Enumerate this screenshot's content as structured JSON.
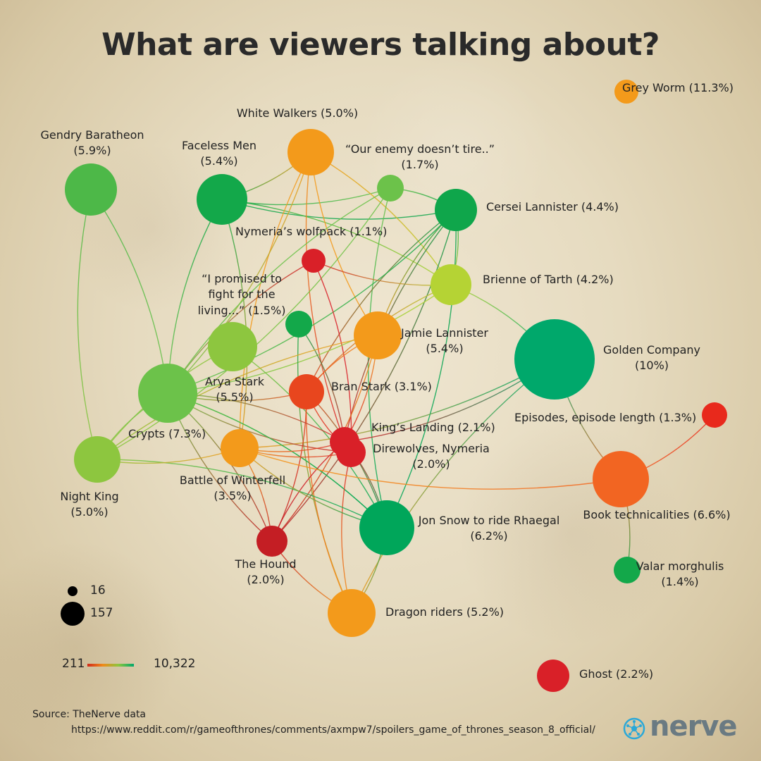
{
  "title": "What are viewers talking about?",
  "nodes": [
    {
      "id": "grey_worm",
      "label": "Grey Worm",
      "pct": "(11.3%)",
      "color": "#f39a1b"
    },
    {
      "id": "white_walkers",
      "label": "White Walkers",
      "pct": "(5.0%)",
      "color": "#f39a1b"
    },
    {
      "id": "gendry",
      "label": "Gendry Baratheon",
      "pct": "(5.9%)",
      "color": "#4db848"
    },
    {
      "id": "faceless",
      "label": "Faceless Men",
      "pct": "(5.4%)",
      "color": "#13a84a"
    },
    {
      "id": "enemy",
      "label": "“Our enemy doesn’t tire..”",
      "pct": "(1.7%)",
      "color": "#6cc24a"
    },
    {
      "id": "cersei",
      "label": "Cersei Lannister",
      "pct": "(4.4%)",
      "color": "#0fa64b"
    },
    {
      "id": "nymeria_pack",
      "label": "Nymeria’s wolfpack",
      "pct": "(1.1%)",
      "color": "#d92028"
    },
    {
      "id": "promised",
      "label": "“I promised to fight for the living...”",
      "pct": "(1.5%)",
      "color": "#8dc63f"
    },
    {
      "id": "brienne",
      "label": "Brienne of Tarth",
      "pct": "(4.2%)",
      "color": "#b5d334"
    },
    {
      "id": "small_green",
      "label": "",
      "pct": "",
      "color": "#13a84a"
    },
    {
      "id": "jamie",
      "label": "Jamie Lannister",
      "pct": "(5.4%)",
      "color": "#f39a1b"
    },
    {
      "id": "golden",
      "label": "Golden Company",
      "pct": "(10%)",
      "color": "#00a86b"
    },
    {
      "id": "arya",
      "label": "Arya Stark",
      "pct": "(5.5%)",
      "color": "#6cc24a"
    },
    {
      "id": "crypts",
      "label": "Crypts",
      "pct": "(7.3%)",
      "color": "#6cc24a"
    },
    {
      "id": "bran",
      "label": "Bran Stark",
      "pct": "(3.1%)",
      "color": "#e8461e"
    },
    {
      "id": "episodes",
      "label": "Episodes, episode length",
      "pct": "(1.3%)",
      "color": "#e8291c"
    },
    {
      "id": "kings",
      "label": "King’s Landing",
      "pct": "(2.1%)",
      "color": "#d92028"
    },
    {
      "id": "direwolves",
      "label": "Direwolves, Nymeria",
      "pct": "(2.0%)",
      "color": "#d92028"
    },
    {
      "id": "night_king",
      "label": "Night King",
      "pct": "(5.0%)",
      "color": "#8dc63f"
    },
    {
      "id": "battle",
      "label": "Battle of Winterfell",
      "pct": "(3.5%)",
      "color": "#f39a1b"
    },
    {
      "id": "book",
      "label": "Book technicalities",
      "pct": "(6.6%)",
      "color": "#f26522"
    },
    {
      "id": "jon",
      "label": "Jon Snow to ride Rhaegal",
      "pct": "(6.2%)",
      "color": "#00a65a"
    },
    {
      "id": "hound",
      "label": "The Hound",
      "pct": "(2.0%)",
      "color": "#c41e24"
    },
    {
      "id": "valar",
      "label": "Valar morghulis",
      "pct": "(1.4%)",
      "color": "#13a84a"
    },
    {
      "id": "dragon",
      "label": "Dragon riders",
      "pct": "(5.2%)",
      "color": "#f39a1b"
    },
    {
      "id": "ghost",
      "label": "Ghost",
      "pct": "(2.2%)",
      "color": "#d92028"
    }
  ],
  "edges": [
    [
      "gendry",
      "night_king"
    ],
    [
      "gendry",
      "arya"
    ],
    [
      "faceless",
      "cersei"
    ],
    [
      "faceless",
      "brienne"
    ],
    [
      "faceless",
      "arya"
    ],
    [
      "faceless",
      "battle"
    ],
    [
      "faceless",
      "enemy"
    ],
    [
      "white_walkers",
      "faceless"
    ],
    [
      "white_walkers",
      "jamie"
    ],
    [
      "white_walkers",
      "brienne"
    ],
    [
      "white_walkers",
      "battle"
    ],
    [
      "white_walkers",
      "crypts"
    ],
    [
      "white_walkers",
      "kings"
    ],
    [
      "enemy",
      "cersei"
    ],
    [
      "enemy",
      "arya"
    ],
    [
      "enemy",
      "night_king"
    ],
    [
      "enemy",
      "jon"
    ],
    [
      "cersei",
      "brienne"
    ],
    [
      "cersei",
      "jamie"
    ],
    [
      "cersei",
      "jon"
    ],
    [
      "cersei",
      "bran"
    ],
    [
      "cersei",
      "arya"
    ],
    [
      "cersei",
      "kings"
    ],
    [
      "cersei",
      "hound"
    ],
    [
      "nymeria_pack",
      "brienne"
    ],
    [
      "nymeria_pack",
      "direwolves"
    ],
    [
      "nymeria_pack",
      "arya"
    ],
    [
      "brienne",
      "golden"
    ],
    [
      "brienne",
      "bran"
    ],
    [
      "brienne",
      "crypts"
    ],
    [
      "promised",
      "night_king"
    ],
    [
      "promised",
      "jon"
    ],
    [
      "small_green",
      "dragon"
    ],
    [
      "small_green",
      "kings"
    ],
    [
      "jamie",
      "bran"
    ],
    [
      "jamie",
      "hound"
    ],
    [
      "jamie",
      "night_king"
    ],
    [
      "jamie",
      "kings"
    ],
    [
      "golden",
      "book"
    ],
    [
      "golden",
      "battle"
    ],
    [
      "golden",
      "dragon"
    ],
    [
      "golden",
      "kings"
    ],
    [
      "arya",
      "bran"
    ],
    [
      "arya",
      "jon"
    ],
    [
      "arya",
      "direwolves"
    ],
    [
      "arya",
      "hound"
    ],
    [
      "crypts",
      "night_king"
    ],
    [
      "crypts",
      "jon"
    ],
    [
      "crypts",
      "hound"
    ],
    [
      "bran",
      "jon"
    ],
    [
      "bran",
      "direwolves"
    ],
    [
      "bran",
      "hound"
    ],
    [
      "bran",
      "dragon"
    ],
    [
      "kings",
      "battle"
    ],
    [
      "kings",
      "hound"
    ],
    [
      "kings",
      "jon"
    ],
    [
      "kings",
      "crypts"
    ],
    [
      "direwolves",
      "battle"
    ],
    [
      "direwolves",
      "dragon"
    ],
    [
      "night_king",
      "jon"
    ],
    [
      "night_king",
      "battle"
    ],
    [
      "battle",
      "hound"
    ],
    [
      "battle",
      "jon"
    ],
    [
      "jon",
      "dragon"
    ],
    [
      "hound",
      "dragon"
    ],
    [
      "book",
      "valar"
    ],
    [
      "book",
      "episodes"
    ],
    [
      "book",
      "battle"
    ]
  ],
  "size_legend": {
    "min": "16",
    "max": "157"
  },
  "color_legend": {
    "min": "211",
    "max": "10,322",
    "colors": [
      "#d12a1a",
      "#f08a1a",
      "#8cc63f",
      "#00a86b"
    ]
  },
  "source": {
    "line1": "Source:  TheNerve data",
    "line2": "https://www.reddit.com/r/gameofthrones/comments/axmpw7/spoilers_game_of_thrones_season_8_official/"
  },
  "logo": {
    "text": "nerve",
    "icon": "nerve-logo-icon"
  }
}
